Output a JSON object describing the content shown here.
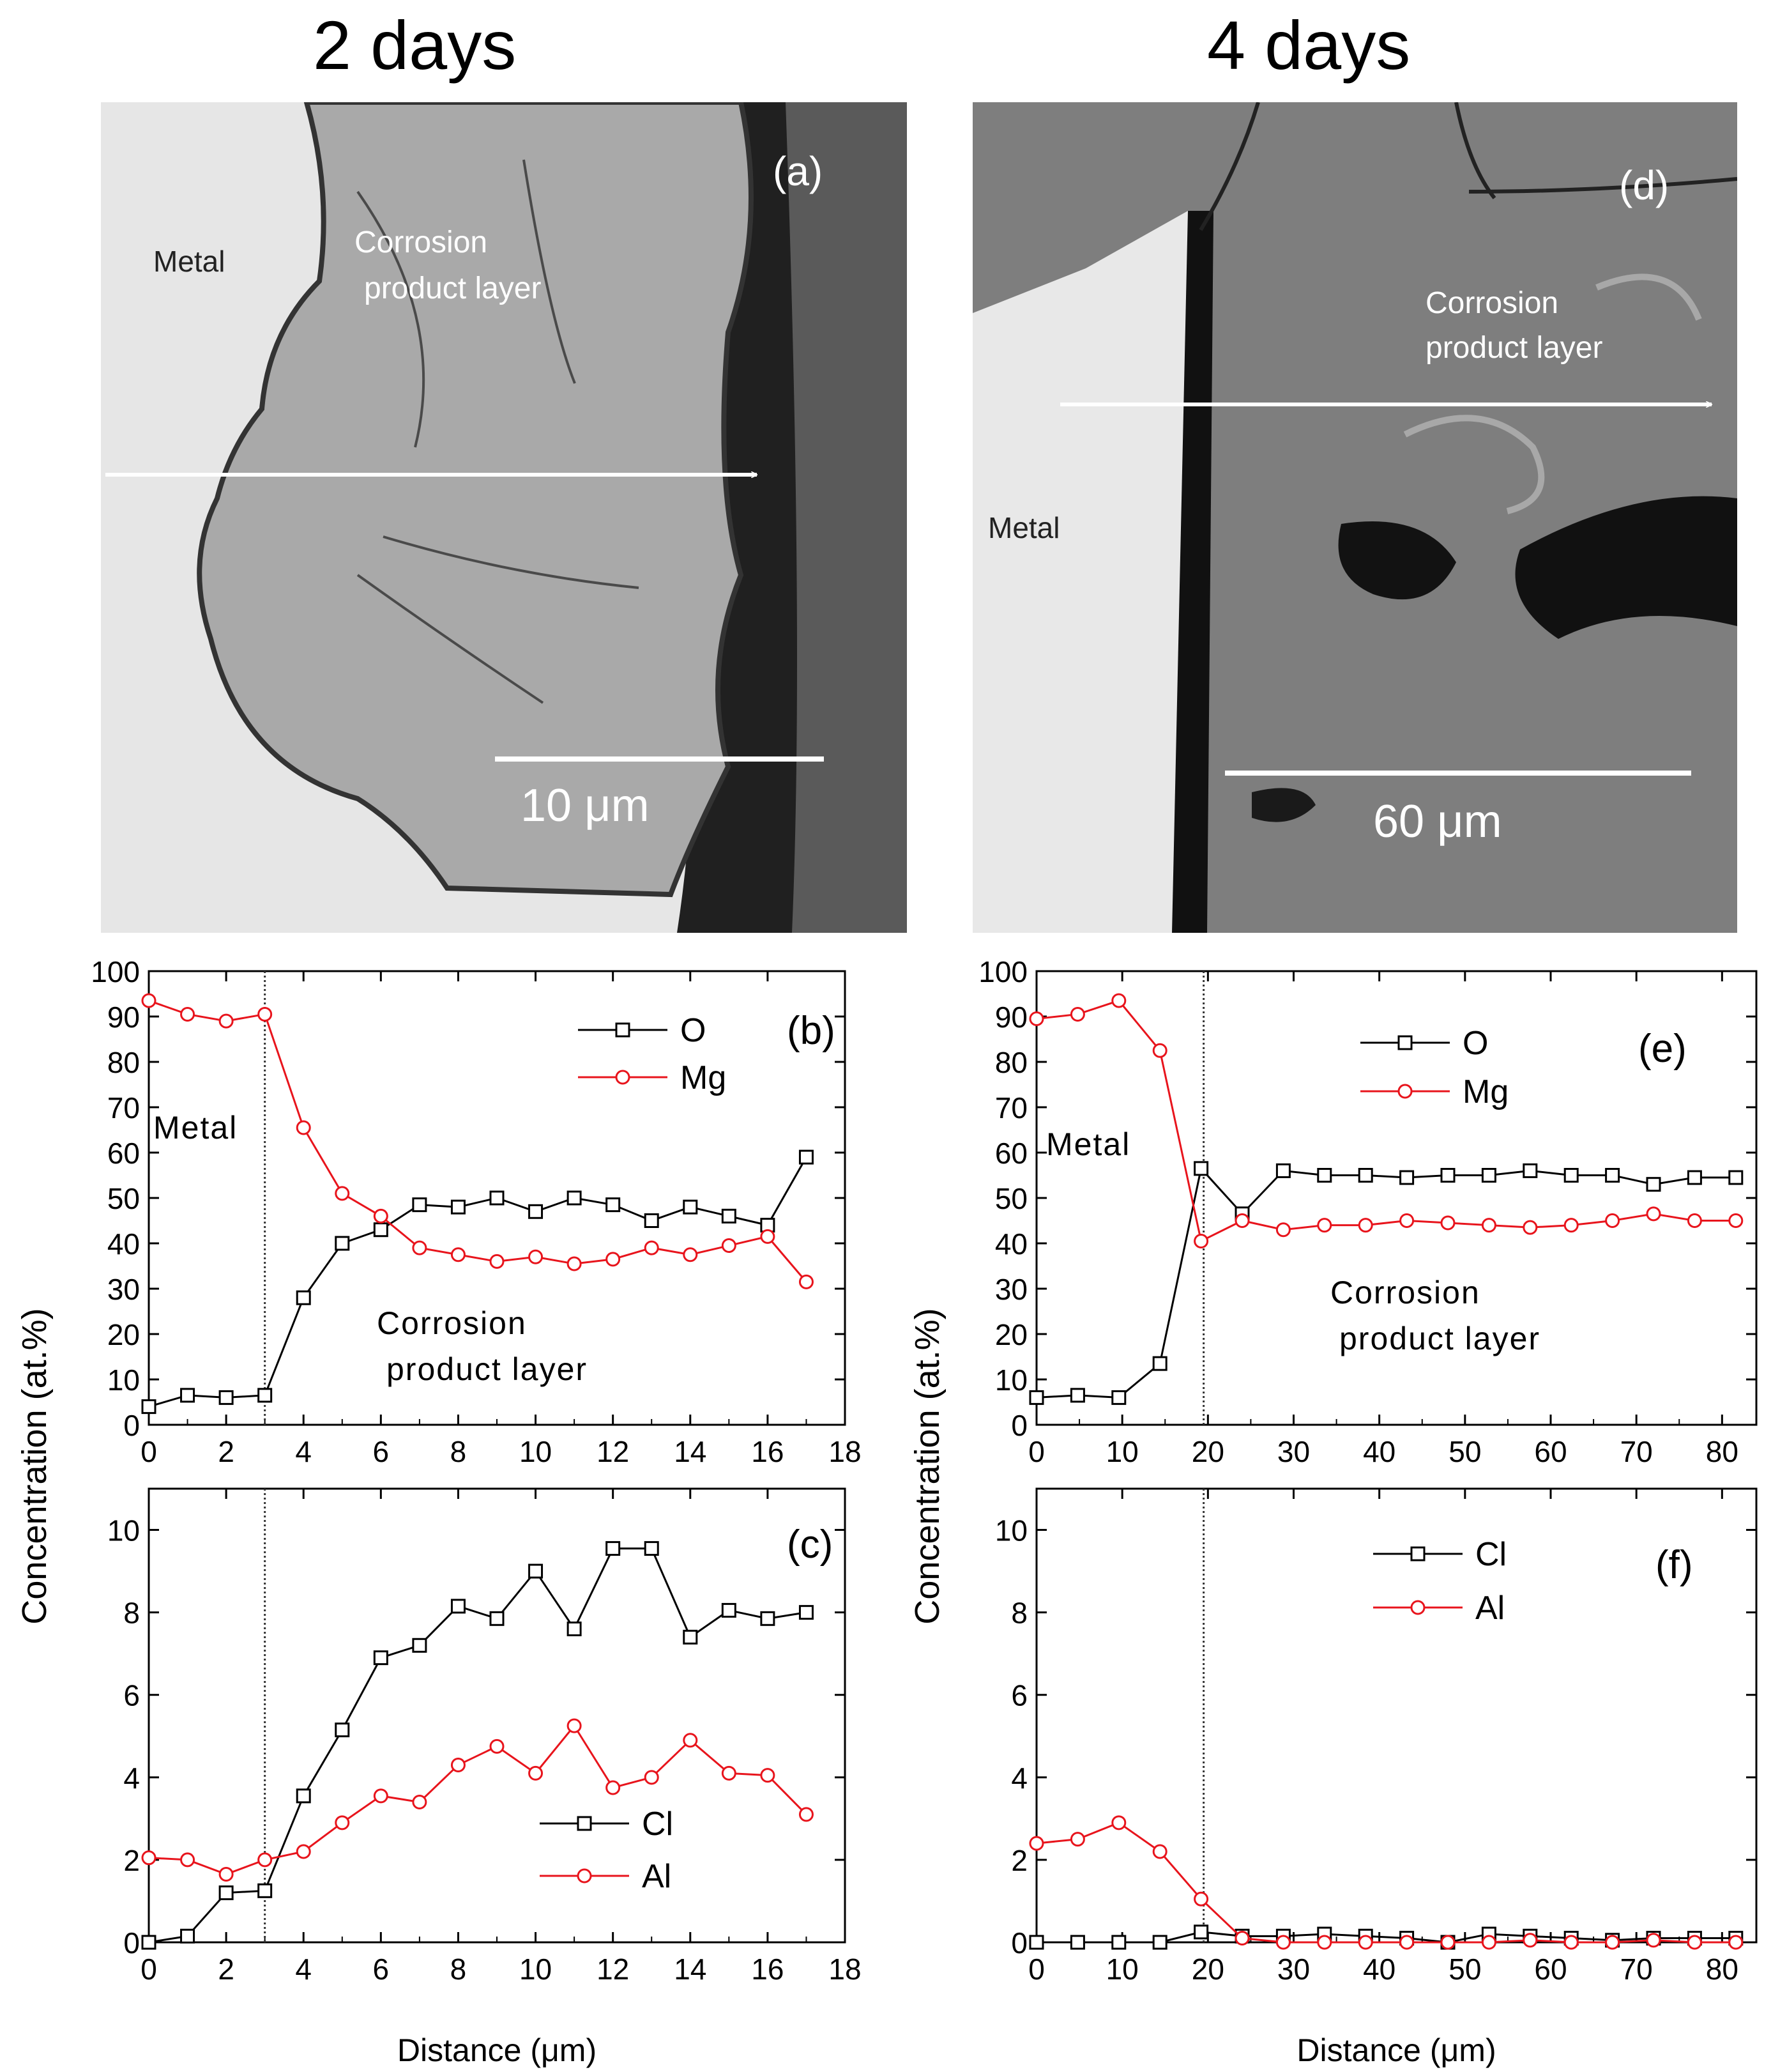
{
  "titles": {
    "left": "2 days",
    "right": "4 days"
  },
  "images": {
    "a": {
      "label": "(a)",
      "metal": "Metal",
      "layer_line1": "Corrosion",
      "layer_line2": "product layer",
      "scale": "10 μm"
    },
    "d": {
      "label": "(d)",
      "metal": "Metal",
      "layer_line1": "Corrosion",
      "layer_line2": "product layer",
      "scale": "60 μm"
    }
  },
  "colors": {
    "series_black": "#000000",
    "series_red": "#e8141c",
    "guide": "#333333"
  },
  "chart_data": [
    {
      "id": "b",
      "type": "line",
      "panel_label": "(b)",
      "x": [
        0,
        1,
        2,
        3,
        4,
        5,
        6,
        7,
        8,
        9,
        10,
        11,
        12,
        13,
        14,
        15,
        16,
        17
      ],
      "xlim": [
        0,
        18
      ],
      "xticks": [
        0,
        2,
        4,
        6,
        8,
        10,
        12,
        14,
        16,
        18
      ],
      "ylim": [
        0,
        100
      ],
      "yticks": [
        0,
        10,
        20,
        30,
        40,
        50,
        60,
        70,
        80,
        90,
        100
      ],
      "ylabel": "Concentration (at.%)",
      "xlabel": "",
      "vline": 3,
      "annotations": [
        "Metal",
        "Corrosion",
        "product  layer"
      ],
      "series": [
        {
          "name": "O",
          "marker": "square",
          "color": "#000000",
          "values": [
            4,
            6.5,
            6,
            6.5,
            28,
            40,
            43,
            48.5,
            48,
            50,
            47,
            50,
            48.5,
            45,
            48,
            46,
            44,
            59
          ]
        },
        {
          "name": "Mg",
          "marker": "circle",
          "color": "#e8141c",
          "values": [
            93.5,
            90.5,
            89,
            90.5,
            65.5,
            51,
            46,
            39,
            37.5,
            36,
            37,
            35.5,
            36.5,
            39,
            37.5,
            39.5,
            41.5,
            31.5
          ]
        }
      ]
    },
    {
      "id": "c",
      "type": "line",
      "panel_label": "(c)",
      "x": [
        0,
        1,
        2,
        3,
        4,
        5,
        6,
        7,
        8,
        9,
        10,
        11,
        12,
        13,
        14,
        15,
        16,
        17
      ],
      "xlim": [
        0,
        18
      ],
      "xticks": [
        0,
        2,
        4,
        6,
        8,
        10,
        12,
        14,
        16,
        18
      ],
      "ylim": [
        0,
        11
      ],
      "yticks": [
        0,
        2,
        4,
        6,
        8,
        10
      ],
      "ylabel": "",
      "xlabel": "Distance (μm)",
      "vline": 3,
      "annotations": [],
      "series": [
        {
          "name": "Cl",
          "marker": "square",
          "color": "#000000",
          "values": [
            0,
            0.15,
            1.2,
            1.25,
            3.55,
            5.15,
            6.9,
            7.2,
            8.15,
            7.85,
            9,
            7.6,
            9.55,
            9.55,
            7.4,
            8.05,
            7.85,
            8
          ]
        },
        {
          "name": "Al",
          "marker": "circle",
          "color": "#e8141c",
          "values": [
            2.05,
            2,
            1.65,
            2,
            2.2,
            2.9,
            3.55,
            3.4,
            4.3,
            4.75,
            4.1,
            5.25,
            3.75,
            4,
            4.9,
            4.1,
            4.05,
            3.1
          ]
        }
      ]
    },
    {
      "id": "e",
      "type": "line",
      "panel_label": "(e)",
      "x": [
        0,
        4.8,
        9.6,
        14.4,
        19.2,
        24,
        28.8,
        33.6,
        38.4,
        43.2,
        48,
        52.8,
        57.6,
        62.4,
        67.2,
        72,
        76.8,
        81.6
      ],
      "xlim": [
        0,
        84
      ],
      "xticks": [
        0,
        10,
        20,
        30,
        40,
        50,
        60,
        70,
        80
      ],
      "ylim": [
        0,
        100
      ],
      "yticks": [
        0,
        10,
        20,
        30,
        40,
        50,
        60,
        70,
        80,
        90,
        100
      ],
      "ylabel": "Concentration (at.%)",
      "xlabel": "",
      "vline": 19.5,
      "annotations": [
        "Metal",
        "Corrosion",
        "product  layer"
      ],
      "series": [
        {
          "name": "O",
          "marker": "square",
          "color": "#000000",
          "values": [
            6,
            6.5,
            6,
            13.5,
            56.5,
            46.5,
            56,
            55,
            55,
            54.5,
            55,
            55,
            56,
            55,
            55,
            53,
            54.5,
            54.5
          ]
        },
        {
          "name": "Mg",
          "marker": "circle",
          "color": "#e8141c",
          "values": [
            89.5,
            90.5,
            93.5,
            82.5,
            40.5,
            45,
            43,
            44,
            44,
            45,
            44.5,
            44,
            43.5,
            44,
            45,
            46.5,
            45,
            45
          ]
        }
      ]
    },
    {
      "id": "f",
      "type": "line",
      "panel_label": "(f)",
      "x": [
        0,
        4.8,
        9.6,
        14.4,
        19.2,
        24,
        28.8,
        33.6,
        38.4,
        43.2,
        48,
        52.8,
        57.6,
        62.4,
        67.2,
        72,
        76.8,
        81.6
      ],
      "xlim": [
        0,
        84
      ],
      "xticks": [
        0,
        10,
        20,
        30,
        40,
        50,
        60,
        70,
        80
      ],
      "ylim": [
        0,
        11
      ],
      "yticks": [
        0,
        2,
        4,
        6,
        8,
        10
      ],
      "ylabel": "",
      "xlabel": "Distance (μm)",
      "vline": 19.5,
      "annotations": [],
      "series": [
        {
          "name": "Cl",
          "marker": "square",
          "color": "#000000",
          "values": [
            0,
            0,
            0,
            0,
            0.25,
            0.15,
            0.15,
            0.2,
            0.15,
            0.1,
            0,
            0.2,
            0.15,
            0.1,
            0.05,
            0.1,
            0.1,
            0.1
          ]
        },
        {
          "name": "Al",
          "marker": "circle",
          "color": "#e8141c",
          "values": [
            2.4,
            2.5,
            2.9,
            2.2,
            1.05,
            0.1,
            0,
            0,
            0,
            0,
            0,
            0,
            0.05,
            0,
            0,
            0.05,
            0,
            0
          ]
        }
      ]
    }
  ],
  "shared_ylabel": "Concentration (at.%)"
}
